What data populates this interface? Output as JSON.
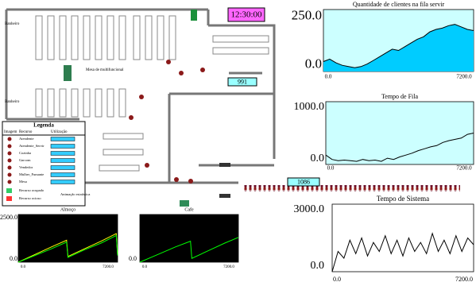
{
  "clock": "12:30:00",
  "counters": [
    "991",
    "1086"
  ],
  "floor_labels": [
    "Banheiro",
    "Banheiro",
    "Mesa de multifuncional"
  ],
  "legend": {
    "title": "Legenda",
    "headers": [
      "Imagem",
      "Recurso",
      "Utilização"
    ],
    "rows": [
      "Atendente",
      "Atendente_Servir",
      "Cozinha",
      "Garcom",
      "Vendedor",
      "Mulher_Fumante",
      "Mesa"
    ],
    "status": [
      "Recurso ocupado",
      "Recurso ocioso"
    ],
    "note": "Animação estatística"
  },
  "plots": [
    {
      "title": "Quantidade de clientes na fila servir",
      "xlim": [
        0,
        7200
      ],
      "ylim": [
        0,
        250
      ],
      "xticks": [
        {
          "value": 0,
          "label": "0.0"
        },
        {
          "value": 7200,
          "label": "7200.0"
        }
      ],
      "yticks": [
        {
          "value": 0,
          "label": "0.0"
        },
        {
          "value": 250,
          "label": "250.0"
        }
      ],
      "x": [
        0,
        300,
        600,
        900,
        1200,
        1500,
        1800,
        2100,
        2400,
        2700,
        3000,
        3300,
        3600,
        3900,
        4200,
        4500,
        4800,
        5100,
        5400,
        5700,
        6000,
        6300,
        6600,
        6900,
        7200
      ],
      "series": [
        {
          "color": "#000000",
          "fill": "#00ccff",
          "values": [
            40,
            50,
            35,
            25,
            20,
            15,
            20,
            30,
            45,
            60,
            75,
            90,
            85,
            100,
            115,
            130,
            140,
            160,
            170,
            175,
            185,
            190,
            180,
            170,
            165
          ]
        }
      ]
    },
    {
      "title": "Tempo de Fila",
      "xlim": [
        0,
        7200
      ],
      "ylim": [
        0,
        1000
      ],
      "xticks": [
        {
          "value": 0,
          "label": "0.0"
        },
        {
          "value": 7200,
          "label": "7200.0"
        }
      ],
      "yticks": [
        {
          "value": 0,
          "label": "0.0"
        },
        {
          "value": 1000,
          "label": "1000.0"
        }
      ],
      "x": [
        0,
        300,
        600,
        900,
        1200,
        1500,
        1800,
        2100,
        2400,
        2700,
        3000,
        3300,
        3600,
        3900,
        4200,
        4500,
        4800,
        5100,
        5400,
        5700,
        6000,
        6300,
        6600,
        6900,
        7200
      ],
      "series": [
        {
          "color": "#000000",
          "values": [
            150,
            80,
            60,
            70,
            60,
            50,
            80,
            60,
            70,
            50,
            100,
            80,
            120,
            150,
            180,
            220,
            250,
            280,
            300,
            350,
            380,
            400,
            420,
            480,
            500
          ]
        }
      ]
    },
    {
      "title": "Tempo de Sistema",
      "xlim": [
        0,
        7200
      ],
      "ylim": [
        0,
        3000
      ],
      "xticks": [
        {
          "value": 0,
          "label": "0.0"
        },
        {
          "value": 7200,
          "label": "7200.0"
        }
      ],
      "yticks": [
        {
          "value": 0,
          "label": "0.0"
        },
        {
          "value": 3000,
          "label": "3000.0"
        }
      ],
      "x": [
        0,
        300,
        600,
        900,
        1200,
        1500,
        1800,
        2100,
        2400,
        2700,
        3000,
        3300,
        3600,
        3900,
        4200,
        4500,
        4800,
        5100,
        5400,
        5700,
        6000,
        6300,
        6600,
        6900,
        7200
      ],
      "series": [
        {
          "color": "#000000",
          "values": [
            0,
            900,
            600,
            1400,
            800,
            1500,
            700,
            1300,
            900,
            1600,
            800,
            1400,
            700,
            1500,
            900,
            1300,
            800,
            1700,
            900,
            1400,
            800,
            1600,
            900,
            1500,
            1200
          ]
        }
      ]
    },
    {
      "title": "Almoço",
      "xlim": [
        0,
        7200
      ],
      "ylim": [
        0,
        2500
      ],
      "xticks": [
        {
          "value": 0,
          "label": "0.0"
        },
        {
          "value": 7200,
          "label": "7200.0"
        }
      ],
      "yticks": [
        {
          "value": 0,
          "label": "0.0"
        },
        {
          "value": 2500,
          "label": "2500.0"
        }
      ],
      "x": [
        0,
        1200,
        2400,
        3500,
        3600,
        4800,
        6000,
        7100,
        7200
      ],
      "series": [
        {
          "color": "#ffff00",
          "values": [
            0,
            400,
            800,
            1150,
            300,
            700,
            1100,
            1500,
            400
          ]
        },
        {
          "color": "#00ff00",
          "values": [
            0,
            350,
            700,
            1050,
            250,
            650,
            1000,
            1400,
            350
          ]
        }
      ]
    },
    {
      "title": "Cafe",
      "xlim": [
        0,
        7200
      ],
      "ylim": [
        0,
        2500
      ],
      "xticks": [
        {
          "value": 0,
          "label": "0.0"
        },
        {
          "value": 7200,
          "label": "7200.0"
        }
      ],
      "yticks": [
        {
          "value": 0,
          "label": "0.0"
        }
      ],
      "x": [
        0,
        1300,
        2600,
        3700,
        3800,
        5000,
        6200,
        7200
      ],
      "series": [
        {
          "color": "#00ff00",
          "values": [
            0,
            400,
            800,
            1100,
            200,
            600,
            1000,
            1300
          ]
        }
      ]
    }
  ]
}
